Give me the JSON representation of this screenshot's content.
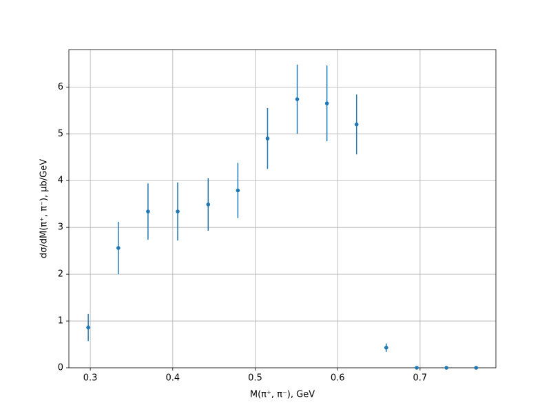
{
  "chart_data": {
    "type": "errorbar",
    "xlabel": "M(π⁺, π⁻), GeV",
    "ylabel": "dσ/dM(π⁺, π⁻), μb/GeV",
    "x": [
      0.2975,
      0.334,
      0.37,
      0.406,
      0.443,
      0.479,
      0.515,
      0.551,
      0.587,
      0.623,
      0.659,
      0.696,
      0.732,
      0.768
    ],
    "values": [
      0.86,
      2.56,
      3.34,
      3.34,
      3.49,
      3.79,
      4.9,
      5.74,
      5.65,
      5.2,
      0.43,
      0,
      0,
      0
    ],
    "errors": [
      0.29,
      0.56,
      0.6,
      0.62,
      0.56,
      0.59,
      0.65,
      0.74,
      0.81,
      0.64,
      0.09,
      0,
      0,
      0
    ],
    "color": "#1f77b4",
    "xlim": [
      0.274,
      0.792
    ],
    "xticks": [
      0.3,
      0.4,
      0.5,
      0.6,
      0.7
    ],
    "ylim": [
      0,
      6.8
    ],
    "yticks": [
      0,
      1,
      2,
      3,
      4,
      5,
      6
    ],
    "grid": true
  }
}
